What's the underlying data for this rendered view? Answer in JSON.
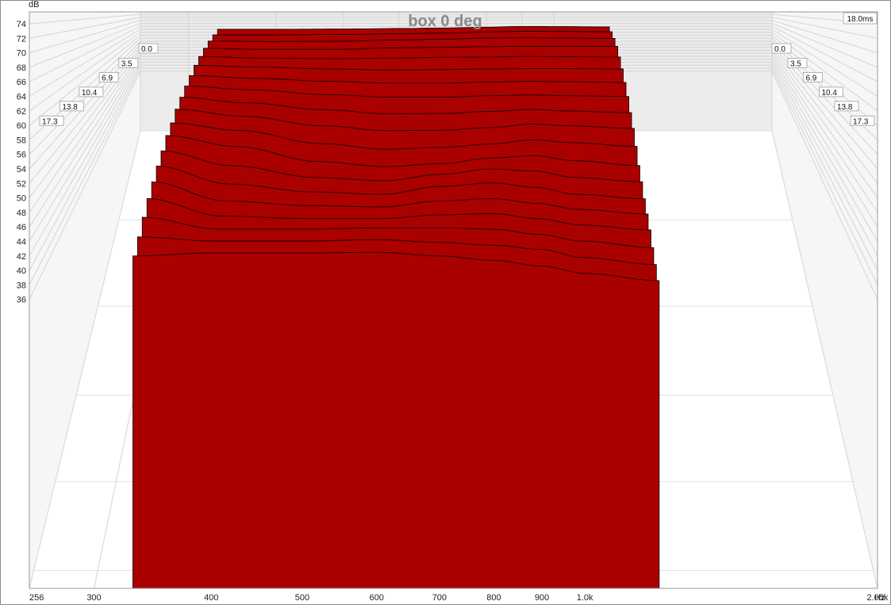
{
  "chart_data": {
    "type": "waterfall",
    "title": "box 0 deg",
    "y_unit": "dB",
    "x_unit": "Hz",
    "ylim": [
      35,
      75
    ],
    "xlim": [
      256,
      2050
    ],
    "y_ticks": [
      "74",
      "72",
      "70",
      "68",
      "66",
      "64",
      "62",
      "60",
      "58",
      "56",
      "54",
      "52",
      "50",
      "48",
      "46",
      "44",
      "42",
      "40",
      "38",
      "36"
    ],
    "x_ticks": [
      {
        "label": "256",
        "value": 256
      },
      {
        "label": "300",
        "value": 300
      },
      {
        "label": "400",
        "value": 400
      },
      {
        "label": "500",
        "value": 500
      },
      {
        "label": "600",
        "value": 600
      },
      {
        "label": "700",
        "value": 700
      },
      {
        "label": "800",
        "value": 800
      },
      {
        "label": "900",
        "value": 900
      },
      {
        "label": "1.0k",
        "value": 1000
      },
      {
        "label": "2.05k",
        "value": 2050
      }
    ],
    "time_unit": "ms",
    "time_max_label": "18.0ms",
    "time_ticks": [
      "0.0",
      "3.5",
      "6.9",
      "10.4",
      "13.8",
      "17.3"
    ],
    "time_range_ms": [
      0,
      18.0
    ],
    "fill_color": "#aa0000",
    "line_color": "#1a0000",
    "slice_frequency_range_hz": [
      330,
      1200
    ],
    "curve_anchor_hz": [
      330,
      400,
      500,
      600,
      700,
      800,
      900,
      1000,
      1200
    ],
    "slices": [
      {
        "t_ms": 0.0,
        "db": [
          64.0,
          64.0,
          64.2,
          64.5,
          64.9,
          65.4,
          65.9,
          65.8,
          65.6
        ]
      },
      {
        "t_ms": 1.0,
        "db": [
          63.0,
          63.0,
          63.2,
          63.6,
          64.0,
          64.6,
          64.9,
          64.9,
          64.7
        ]
      },
      {
        "t_ms": 2.0,
        "db": [
          62.0,
          61.8,
          61.9,
          62.5,
          62.9,
          63.4,
          63.5,
          63.4,
          63.2
        ]
      },
      {
        "t_ms": 3.0,
        "db": [
          60.8,
          60.4,
          60.4,
          61.0,
          61.2,
          61.5,
          61.6,
          61.6,
          61.6
        ]
      },
      {
        "t_ms": 4.0,
        "db": [
          59.6,
          59.0,
          58.8,
          59.0,
          59.3,
          59.4,
          59.6,
          59.5,
          59.4
        ]
      },
      {
        "t_ms": 5.0,
        "db": [
          58.4,
          57.8,
          57.2,
          56.8,
          57.0,
          57.2,
          57.3,
          57.3,
          57.2
        ]
      },
      {
        "t_ms": 6.0,
        "db": [
          57.0,
          56.2,
          55.3,
          54.8,
          54.8,
          55.1,
          55.3,
          55.2,
          55.0
        ]
      },
      {
        "t_ms": 7.0,
        "db": [
          55.8,
          54.8,
          53.5,
          52.8,
          52.8,
          53.2,
          53.4,
          53.2,
          53.0
        ]
      },
      {
        "t_ms": 8.0,
        "db": [
          54.6,
          53.2,
          51.5,
          50.5,
          50.6,
          51.1,
          51.6,
          51.2,
          50.8
        ]
      },
      {
        "t_ms": 9.0,
        "db": [
          53.4,
          51.8,
          49.6,
          48.5,
          48.6,
          49.2,
          50.0,
          49.6,
          49.0
        ]
      },
      {
        "t_ms": 10.0,
        "db": [
          52.0,
          50.4,
          47.6,
          46.4,
          46.8,
          47.5,
          48.4,
          47.8,
          47.0
        ]
      },
      {
        "t_ms": 11.0,
        "db": [
          51.0,
          48.8,
          45.8,
          44.8,
          45.4,
          46.5,
          47.0,
          46.0,
          45.0
        ]
      },
      {
        "t_ms": 12.0,
        "db": [
          49.6,
          46.8,
          44.6,
          44.0,
          45.2,
          46.2,
          45.8,
          44.6,
          43.8
        ]
      },
      {
        "t_ms": 13.0,
        "db": [
          48.4,
          45.2,
          43.8,
          43.4,
          44.8,
          45.4,
          44.6,
          43.4,
          42.6
        ]
      },
      {
        "t_ms": 14.0,
        "db": [
          47.2,
          44.0,
          43.2,
          43.0,
          44.0,
          44.4,
          43.6,
          42.6,
          41.8
        ]
      },
      {
        "t_ms": 15.0,
        "db": [
          46.0,
          43.2,
          42.8,
          42.8,
          43.4,
          43.6,
          42.8,
          41.8,
          41.0
        ]
      },
      {
        "t_ms": 16.0,
        "db": [
          44.6,
          42.8,
          42.8,
          43.0,
          43.0,
          42.8,
          42.0,
          41.0,
          40.0
        ]
      },
      {
        "t_ms": 17.0,
        "db": [
          43.2,
          42.6,
          42.6,
          42.8,
          42.4,
          42.0,
          41.4,
          40.2,
          39.2
        ]
      },
      {
        "t_ms": 18.0,
        "db": [
          42.0,
          42.4,
          42.4,
          42.5,
          42.0,
          41.4,
          40.6,
          39.6,
          38.6
        ]
      }
    ]
  }
}
